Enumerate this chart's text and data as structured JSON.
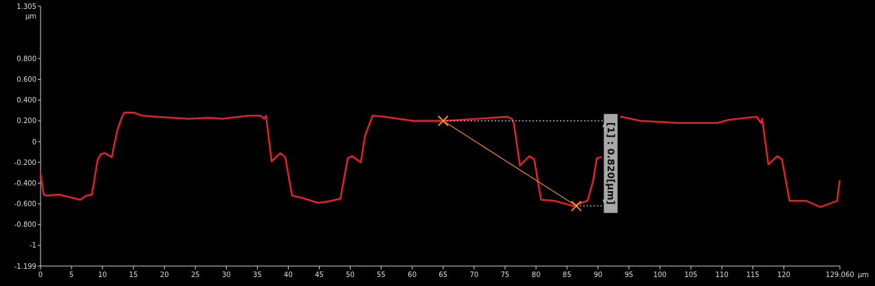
{
  "chart_data": {
    "type": "line",
    "xlabel": "µm",
    "ylabel": "µm",
    "xlim": [
      0,
      129.06
    ],
    "ylim": [
      -1.199,
      1.305
    ],
    "xticks": [
      0,
      5,
      10,
      15,
      20,
      25,
      30,
      35,
      40,
      45,
      50,
      55,
      60,
      65,
      70,
      75,
      80,
      85,
      90,
      95,
      100,
      105,
      110,
      115,
      120,
      {
        "value": 129.06,
        "label": "129.060"
      }
    ],
    "yticks": [
      {
        "value": 1.305,
        "label": "1.305"
      },
      {
        "value": 0.8,
        "label": "0.800"
      },
      {
        "value": 0.6,
        "label": "0.600"
      },
      {
        "value": 0.4,
        "label": "0.400"
      },
      {
        "value": 0.2,
        "label": "0.200"
      },
      0,
      {
        "value": -0.2,
        "label": "-0.200"
      },
      {
        "value": -0.4,
        "label": "-0.400"
      },
      {
        "value": -0.6,
        "label": "-0.600"
      },
      {
        "value": -0.8,
        "label": "-0.800"
      },
      -1,
      {
        "value": -1.199,
        "label": "-1.199"
      }
    ],
    "grid": false,
    "series": [
      {
        "color": "#e8202a",
        "marker": "none",
        "x": [
          0,
          0.5,
          0.9,
          3.0,
          4.4,
          6.4,
          7.4,
          8.3,
          9.2,
          9.7,
          10.4,
          11.5,
          11.9,
          12.4,
          13.1,
          13.5,
          15.0,
          16.5,
          18.6,
          21.1,
          23.9,
          27.3,
          29.3,
          33.6,
          35.5,
          36.1,
          36.4,
          37.3,
          38.7,
          39.5,
          40.6,
          42.1,
          44.8,
          46.2,
          48.4,
          49.6,
          50.3,
          51.7,
          52.4,
          53.6,
          55.5,
          60.1,
          65.0,
          70.7,
          75.3,
          76.1,
          76.4,
          77.4,
          78.9,
          79.7,
          80.8,
          82.9,
          86.0,
          88.3,
          89.2,
          89.8,
          90.5,
          92.0,
          93.7,
          96.9,
          102.9,
          109.3,
          111.1,
          115.6,
          116.3,
          116.5,
          117.5,
          118.9,
          119.7,
          120.9,
          123.6,
          125.9,
          128.6,
          129.0
        ],
        "values": [
          -0.31,
          -0.51,
          -0.52,
          -0.51,
          -0.53,
          -0.56,
          -0.52,
          -0.51,
          -0.18,
          -0.12,
          -0.11,
          -0.15,
          -0.03,
          0.11,
          0.23,
          0.28,
          0.28,
          0.25,
          0.24,
          0.23,
          0.22,
          0.23,
          0.22,
          0.25,
          0.25,
          0.22,
          0.25,
          -0.19,
          -0.11,
          -0.15,
          -0.52,
          -0.54,
          -0.59,
          -0.58,
          -0.55,
          -0.16,
          -0.14,
          -0.2,
          0.06,
          0.25,
          0.24,
          0.2,
          0.2,
          0.22,
          0.24,
          0.22,
          0.18,
          -0.23,
          -0.14,
          -0.17,
          -0.56,
          -0.57,
          -0.62,
          -0.57,
          -0.38,
          -0.16,
          -0.15,
          null,
          0.24,
          0.2,
          0.18,
          0.18,
          0.21,
          0.24,
          0.18,
          0.22,
          -0.22,
          -0.14,
          -0.17,
          -0.57,
          -0.57,
          -0.63,
          -0.57,
          -0.38
        ]
      },
      {
        "color": "#f08a30",
        "marker": "cross",
        "x": [
          65,
          86.5
        ],
        "values": [
          0.2,
          -0.62
        ]
      }
    ],
    "annotations": [
      {
        "text": "[1] : 0.820[µm]",
        "x": 86.5,
        "y": -0.62
      }
    ]
  }
}
